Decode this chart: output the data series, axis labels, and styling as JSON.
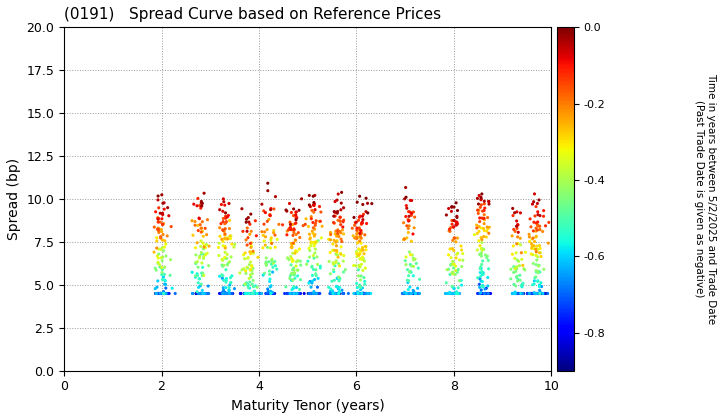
{
  "title": "(0191)   Spread Curve based on Reference Prices",
  "xlabel": "Maturity Tenor (years)",
  "ylabel": "Spread (bp)",
  "colorbar_label": "Time in years between 5/2/2025 and Trade Date\n(Past Trade Date is given as negative)",
  "xlim": [
    0,
    10
  ],
  "ylim": [
    0.0,
    20.0
  ],
  "yticks": [
    0.0,
    2.5,
    5.0,
    7.5,
    10.0,
    12.5,
    15.0,
    17.5,
    20.0
  ],
  "xticks": [
    0,
    2,
    4,
    6,
    8,
    10
  ],
  "clim": [
    -0.9,
    0.0
  ],
  "colorbar_ticks": [
    0.0,
    -0.2,
    -0.4,
    -0.6,
    -0.8
  ],
  "cmap": "jet",
  "seed": 42,
  "background_color": "#ffffff",
  "cluster_centers_x": [
    2.0,
    2.8,
    3.3,
    3.8,
    4.2,
    4.7,
    5.1,
    5.6,
    6.1,
    7.1,
    8.0,
    8.6,
    9.3,
    9.7
  ],
  "point_size": 5
}
